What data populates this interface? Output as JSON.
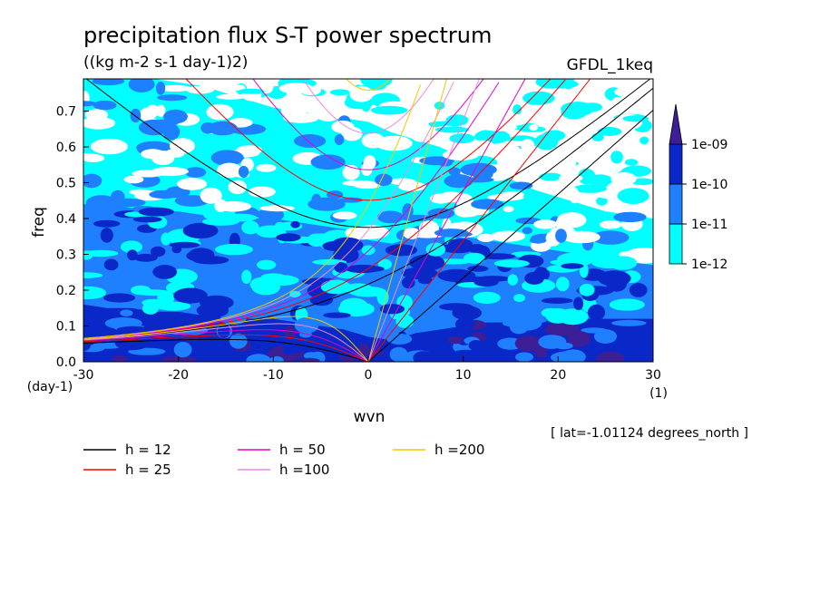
{
  "chart_data": {
    "type": "heatmap",
    "title": "precipitation flux S-T power spectrum",
    "subtitle": "((kg m-2 s-1 day-1)2)",
    "dataset_label": "GFDL_1keq",
    "xlabel": "wvn",
    "ylabel": "freq",
    "x_unit": "(1)",
    "y_unit": "(day-1)",
    "footer": "[ lat=-1.01124 degrees_north ]",
    "xlim": [
      -30,
      30
    ],
    "ylim": [
      0,
      0.79
    ],
    "x_ticks": [
      -30,
      -20,
      -10,
      0,
      10,
      20,
      30
    ],
    "x_tick_labels": [
      "-30",
      "-20",
      "-10",
      "0",
      "10",
      "20",
      "30"
    ],
    "y_ticks": [
      0,
      0.1,
      0.2,
      0.3,
      0.4,
      0.5,
      0.6,
      0.7
    ],
    "y_tick_labels": [
      "0.0",
      "0.1",
      "0.2",
      "0.3",
      "0.4",
      "0.5",
      "0.6",
      "0.7"
    ],
    "colorbar": {
      "levels": [
        "1e-12",
        "1e-11",
        "1e-10",
        "1e-09"
      ],
      "colors": [
        "#ffffff",
        "#00ffff",
        "#1e7fff",
        "#0a28c8",
        "#3c1e96"
      ]
    },
    "contour_bands": [
      {
        "level": "1e-10",
        "freq_top": [
          0.16,
          0.15,
          0.15,
          0.14,
          0.14,
          0.13,
          0.13,
          0.12,
          0.12,
          0.11,
          0.1,
          0.09,
          0.07,
          0.06,
          0.08,
          0.09,
          0.1,
          0.11,
          0.11,
          0.12,
          0.12,
          0.12,
          0.12,
          0.12,
          0.12
        ]
      },
      {
        "level": "1e-11",
        "freq_top": [
          0.44,
          0.44,
          0.43,
          0.42,
          0.42,
          0.41,
          0.41,
          0.4,
          0.4,
          0.39,
          0.38,
          0.37,
          0.34,
          0.33,
          0.35,
          0.36,
          0.35,
          0.34,
          0.33,
          0.32,
          0.31,
          0.3,
          0.29,
          0.28,
          0.27
        ]
      },
      {
        "level": "1e-12",
        "freq_top": [
          0.79,
          0.79,
          0.79,
          0.79,
          0.78,
          0.77,
          0.75,
          0.73,
          0.71,
          0.7,
          0.69,
          0.68,
          0.67,
          0.64,
          0.62,
          0.6,
          0.57,
          0.54,
          0.51,
          0.48,
          0.46,
          0.44,
          0.42,
          0.41,
          0.4
        ]
      }
    ],
    "series": [
      {
        "name": "h = 12",
        "color": "#000000",
        "equivalent_depth_m": 12
      },
      {
        "name": "h = 25",
        "color": "#ff0000",
        "equivalent_depth_m": 25
      },
      {
        "name": "h = 50",
        "color": "#e600c8",
        "equivalent_depth_m": 50
      },
      {
        "name": "h =100",
        "color": "#e68ce6",
        "equivalent_depth_m": 100
      },
      {
        "name": "h =200",
        "color": "#f0c800",
        "equivalent_depth_m": 200
      }
    ],
    "legend_placement": "bottom"
  }
}
